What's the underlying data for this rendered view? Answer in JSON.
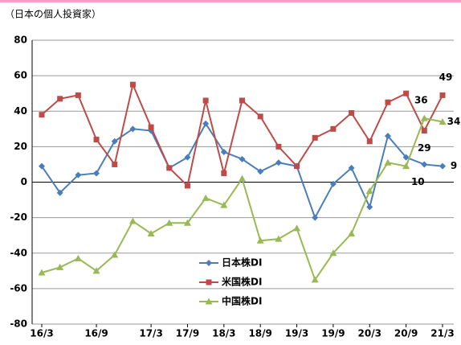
{
  "chart_data": {
    "type": "line",
    "subtitle": "（日本の個人投資家）",
    "categories": [
      "16/3",
      null,
      null,
      "16/9",
      null,
      null,
      "17/3",
      null,
      "17/9",
      null,
      "18/3",
      null,
      "18/9",
      null,
      "19/3",
      null,
      "19/9",
      null,
      "20/3",
      null,
      "20/9",
      null,
      "21/3"
    ],
    "series": [
      {
        "name": "日本株DI",
        "color": "#4a7ebb",
        "marker": "diamond",
        "values": [
          9,
          -6,
          4,
          5,
          23,
          30,
          29,
          8,
          14,
          33,
          17,
          13,
          6,
          11,
          9,
          -20,
          -1,
          8,
          -14,
          26,
          14,
          10,
          9
        ]
      },
      {
        "name": "米国株DI",
        "color": "#be4b48",
        "marker": "square",
        "values": [
          38,
          47,
          49,
          24,
          10,
          55,
          31,
          8,
          -2,
          46,
          5,
          46,
          37,
          20,
          9,
          25,
          30,
          39,
          23,
          45,
          50,
          29,
          49
        ]
      },
      {
        "name": "中国株DI",
        "color": "#98b954",
        "marker": "triangle",
        "values": [
          -51,
          -48,
          -43,
          -50,
          -41,
          -22,
          -29,
          -23,
          -23,
          -9,
          -13,
          2,
          -33,
          -32,
          -26,
          -55,
          -40,
          -29,
          -5,
          11,
          9,
          36,
          34
        ]
      }
    ],
    "ylim": [
      -80,
      80
    ],
    "yticks": [
      -80,
      -60,
      -40,
      -20,
      0,
      20,
      40,
      60,
      80
    ],
    "grid": true
  }
}
